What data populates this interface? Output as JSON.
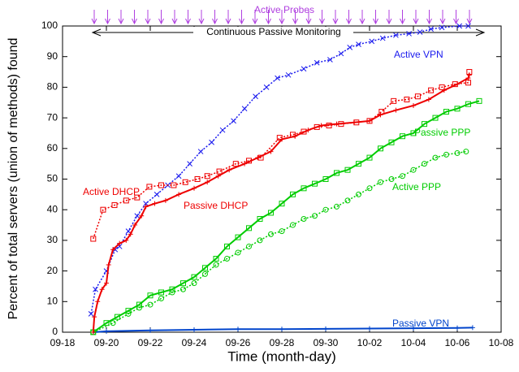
{
  "chart_data": {
    "type": "line",
    "xlabel": "Time (month-day)",
    "ylabel": "Percent of total servers (union of methods) found",
    "annotations": [
      "Active Probes",
      "Continuous Passive Monitoring"
    ],
    "annotation_colors": [
      "#b040e0",
      "#000000"
    ],
    "xlim": [
      0,
      20
    ],
    "xticks": [
      {
        "value": 0,
        "label": "09-18"
      },
      {
        "value": 2,
        "label": "09-20"
      },
      {
        "value": 4,
        "label": "09-22"
      },
      {
        "value": 6,
        "label": "09-24"
      },
      {
        "value": 8,
        "label": "09-26"
      },
      {
        "value": 10,
        "label": "09-28"
      },
      {
        "value": 12,
        "label": "09-30"
      },
      {
        "value": 14,
        "label": "10-02"
      },
      {
        "value": 16,
        "label": "10-04"
      },
      {
        "value": 18,
        "label": "10-06"
      },
      {
        "value": 20,
        "label": "10-08"
      }
    ],
    "ylim": [
      0,
      100
    ],
    "yticks": [
      0,
      10,
      20,
      30,
      40,
      50,
      60,
      70,
      80,
      90,
      100
    ],
    "grid": false,
    "series": [
      {
        "name": "Active VPN",
        "color": "#1a1aee",
        "line_style": "dotted",
        "marker": "x",
        "x": [
          1.3,
          1.5,
          2,
          2.4,
          2.6,
          3,
          3.4,
          3.8,
          4.3,
          4.8,
          5.3,
          5.8,
          6.3,
          6.8,
          7.3,
          7.8,
          8.3,
          8.8,
          9.3,
          9.8,
          10.3,
          11,
          11.6,
          12.2,
          12.7,
          13.1,
          13.5,
          14.1,
          14.6,
          15.2,
          15.8,
          16.3,
          16.8,
          17.3,
          18.1,
          18.5
        ],
        "values": [
          6,
          14,
          20,
          27,
          28,
          33,
          38,
          42,
          45,
          48,
          51,
          55,
          59,
          62,
          66,
          69,
          73,
          77,
          80,
          83,
          84,
          86,
          88,
          89,
          91,
          93,
          94,
          95,
          96,
          97,
          97.5,
          98,
          99,
          99.5,
          100,
          100
        ]
      },
      {
        "name": "Passive VPN",
        "color": "#0044cc",
        "line_style": "solid",
        "marker": "plus",
        "x": [
          1.4,
          2,
          4,
          6,
          8,
          10,
          12,
          14,
          16,
          18,
          18.7
        ],
        "values": [
          0,
          0.3,
          0.6,
          0.8,
          1,
          1,
          1.1,
          1.2,
          1.3,
          1.4,
          1.5
        ]
      },
      {
        "name": "Passive PPP",
        "color": "#00cc00",
        "line_style": "solid",
        "marker": "square",
        "x": [
          1.4,
          2,
          2.5,
          3,
          3.5,
          4,
          4.5,
          5,
          5.5,
          6,
          6.5,
          7,
          7.5,
          8,
          8.5,
          9,
          9.5,
          10,
          10.5,
          11,
          11.5,
          12,
          12.5,
          13,
          13.5,
          14,
          14.5,
          15,
          15.5,
          16,
          16.5,
          17,
          17.5,
          18,
          18.5,
          19
        ],
        "values": [
          0,
          3,
          5,
          7,
          9,
          12,
          13,
          14,
          16,
          18,
          21,
          24,
          28,
          31,
          34,
          37,
          39,
          42,
          45,
          47,
          48.5,
          50,
          52,
          53,
          55,
          57,
          60,
          62,
          64,
          65,
          68,
          70,
          72,
          73,
          74.5,
          75.5
        ]
      },
      {
        "name": "Active PPP",
        "color": "#00cc00",
        "line_style": "dotted",
        "marker": "circle",
        "x": [
          1.4,
          2.3,
          3,
          3.5,
          4,
          4.5,
          5,
          5.5,
          6,
          6.5,
          7,
          7.5,
          8,
          8.5,
          9,
          9.5,
          10,
          10.5,
          11,
          11.5,
          12,
          12.5,
          13,
          13.5,
          14,
          14.5,
          15,
          15.5,
          16,
          16.5,
          17,
          17.5,
          18,
          18.4
        ],
        "values": [
          0,
          3,
          6,
          8,
          9,
          11,
          13,
          14,
          16,
          19,
          22,
          24,
          26,
          28,
          30,
          32,
          33,
          35,
          37,
          38,
          40,
          41,
          43,
          45,
          47,
          49,
          50,
          51,
          53,
          55,
          57,
          58,
          58.5,
          59
        ]
      },
      {
        "name": "Active DHCP",
        "color": "#ee0000",
        "line_style": "dotted",
        "marker": "square",
        "x": [
          1.4,
          1.85,
          2.37,
          2.9,
          3.4,
          3.96,
          4.5,
          5.07,
          5.6,
          6.15,
          6.6,
          7.15,
          7.9,
          8.5,
          9.04,
          9.9,
          10.5,
          11,
          11.6,
          12.15,
          12.7,
          13.4,
          14,
          14.55,
          15.1,
          15.7,
          16.2,
          16.8,
          17.3,
          17.9,
          18.5,
          18.55
        ],
        "values": [
          30.5,
          40,
          41.5,
          43,
          44,
          47.5,
          48,
          48,
          49,
          50,
          51,
          52.5,
          55,
          56,
          57,
          63.5,
          64.5,
          65.5,
          67,
          67.5,
          68,
          68.5,
          69,
          72,
          75.5,
          76,
          77,
          79,
          80,
          81,
          81.5,
          85
        ]
      },
      {
        "name": "Passive DHCP",
        "color": "#ee0000",
        "line_style": "solid",
        "marker": "plus",
        "x": [
          1.4,
          1.45,
          1.6,
          1.8,
          2,
          2.1,
          2.3,
          2.6,
          2.9,
          3.1,
          3.3,
          3.6,
          3.8,
          4.2,
          4.7,
          5.3,
          6,
          6.6,
          7.1,
          7.6,
          8.3,
          8.9,
          9.5,
          10,
          10.6,
          11.2,
          11.8,
          12.5,
          13.3,
          14,
          14.5,
          15.2,
          16,
          16.7,
          17.4,
          18,
          18.5,
          18.55
        ],
        "values": [
          0,
          5,
          10,
          14,
          16,
          22,
          27,
          29,
          30,
          32,
          35,
          38,
          41,
          42,
          43,
          45,
          47,
          49,
          51,
          53,
          55,
          57,
          59,
          63,
          64,
          66,
          67.5,
          68,
          68.5,
          69,
          71,
          72.5,
          74,
          76,
          79,
          81,
          83,
          84
        ]
      }
    ]
  }
}
